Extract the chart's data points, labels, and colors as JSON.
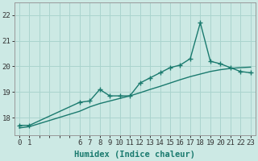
{
  "xlabel": "Humidex (Indice chaleur)",
  "x_labels": [
    "0",
    "1",
    "",
    "",
    "",
    "",
    "6",
    "7",
    "8",
    "9",
    "10",
    "11",
    "12",
    "13",
    "14",
    "15",
    "16",
    "17",
    "18",
    "19",
    "20",
    "21",
    "22",
    "23"
  ],
  "x_positions": [
    0,
    1,
    2,
    3,
    4,
    5,
    6,
    7,
    8,
    9,
    10,
    11,
    12,
    13,
    14,
    15,
    16,
    17,
    18,
    19,
    20,
    21,
    22,
    23
  ],
  "humidex_x": [
    0,
    1,
    6,
    7,
    8,
    9,
    10,
    11,
    12,
    13,
    14,
    15,
    16,
    17,
    18,
    19,
    20,
    21,
    22,
    23
  ],
  "humidex_y": [
    17.7,
    17.7,
    18.6,
    18.65,
    19.1,
    18.85,
    18.85,
    18.85,
    19.35,
    19.55,
    19.75,
    19.95,
    20.05,
    20.3,
    21.7,
    20.2,
    20.1,
    19.95,
    19.8,
    19.75
  ],
  "trend_x": [
    0,
    1,
    6,
    7,
    8,
    9,
    10,
    11,
    12,
    13,
    14,
    15,
    16,
    17,
    18,
    19,
    20,
    21,
    22,
    23
  ],
  "trend_y": [
    17.6,
    17.65,
    18.25,
    18.42,
    18.55,
    18.65,
    18.75,
    18.85,
    18.97,
    19.1,
    19.22,
    19.35,
    19.48,
    19.6,
    19.7,
    19.8,
    19.87,
    19.92,
    19.95,
    19.97
  ],
  "line_color": "#1a7a6e",
  "marker": "+",
  "markersize": 4,
  "markeredgewidth": 1.0,
  "ylim": [
    17.3,
    22.5
  ],
  "yticks": [
    18,
    19,
    20,
    21,
    22
  ],
  "background_color": "#cce9e4",
  "grid_color": "#aad4ce",
  "linewidth": 1.0,
  "tick_fontsize": 6.5,
  "xlabel_fontsize": 7.5
}
